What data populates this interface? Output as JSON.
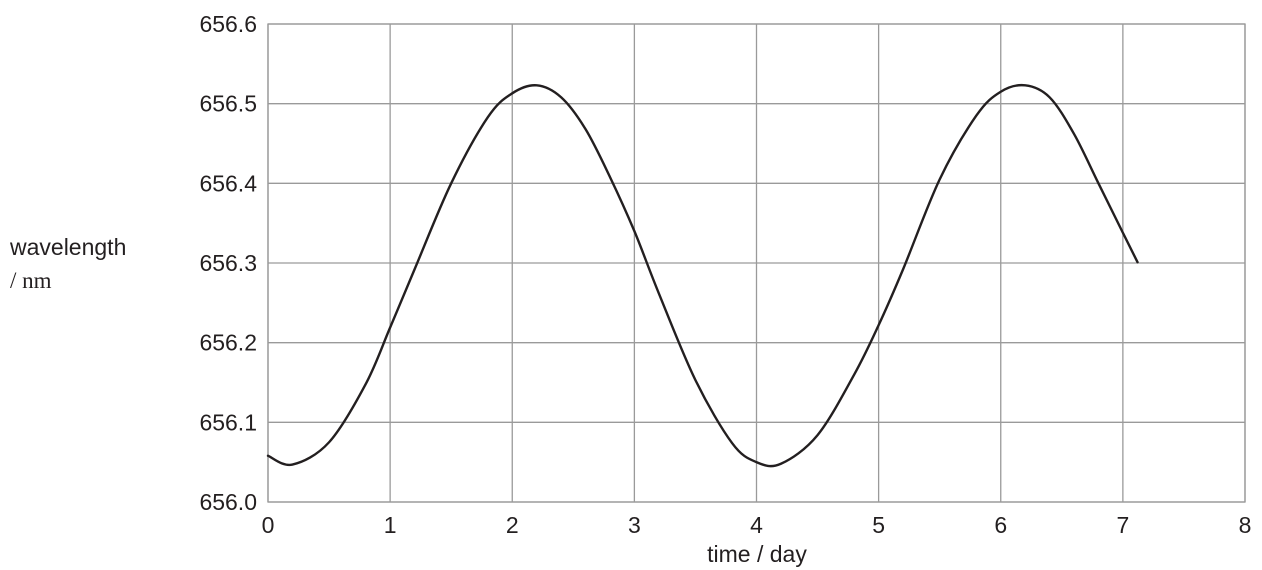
{
  "chart_data": {
    "type": "line",
    "title": "",
    "xlabel": "time / day",
    "ylabel": [
      "wavelength",
      "/ nm"
    ],
    "xlim": [
      0,
      8
    ],
    "ylim": [
      656.0,
      656.6
    ],
    "x_ticks": [
      "0",
      "1",
      "2",
      "3",
      "4",
      "5",
      "6",
      "7",
      "8"
    ],
    "y_ticks": [
      "656.0",
      "656.1",
      "656.2",
      "656.3",
      "656.4",
      "656.5",
      "656.6"
    ],
    "grid": true,
    "legend": "none",
    "line_color": "#231f20",
    "grid_color": "#9a9a9a",
    "series": [
      {
        "x": [
          0,
          0.2,
          0.5,
          0.8,
          1.0,
          1.2,
          1.5,
          1.8,
          2.0,
          2.2,
          2.4,
          2.6,
          2.8,
          3.0,
          3.2,
          3.5,
          3.8,
          4.0,
          4.2,
          4.5,
          4.8,
          5.0,
          5.2,
          5.5,
          5.8,
          6.0,
          6.2,
          6.4,
          6.6,
          6.8,
          7.0,
          7.12
        ],
        "y": [
          656.058,
          656.047,
          656.075,
          656.148,
          656.219,
          656.292,
          656.4,
          656.483,
          656.513,
          656.523,
          656.508,
          656.468,
          656.408,
          656.34,
          656.262,
          656.153,
          656.074,
          656.05,
          656.048,
          656.084,
          656.16,
          656.222,
          656.292,
          656.405,
          656.485,
          656.515,
          656.523,
          656.508,
          656.462,
          656.4,
          656.338,
          656.301
        ]
      }
    ]
  }
}
